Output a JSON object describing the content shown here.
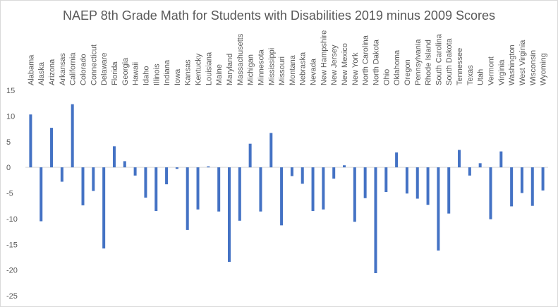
{
  "chart_data": {
    "type": "bar",
    "title": "NAEP 8th Grade Math for Students with Disabilities 2019 minus 2009 Scores",
    "xlabel": "",
    "ylabel": "",
    "ylim": [
      -25,
      15
    ],
    "yticks": [
      15,
      10,
      5,
      0,
      -5,
      -10,
      -15,
      -20,
      -25
    ],
    "grid": false,
    "legend": "none",
    "bar_color": "#4472c4",
    "categories": [
      "Alabama",
      "Alaska",
      "Arizona",
      "Arkansas",
      "California",
      "Colorado",
      "Connecticut",
      "Delaware",
      "Florida",
      "Georgia",
      "Hawaii",
      "Idaho",
      "Illinois",
      "Indiana",
      "Iowa",
      "Kansas",
      "Kentucky",
      "Louisiana",
      "Maine",
      "Maryland",
      "Massachusetts",
      "Michigan",
      "Minnesota",
      "Mississippi",
      "Missouri",
      "Montana",
      "Nebraska",
      "Nevada",
      "New Hampshire",
      "New Jersey",
      "New Mexico",
      "New York",
      "North Carolina",
      "North Dakota",
      "Ohio",
      "Oklahoma",
      "Oregon",
      "Pennsylvania",
      "Rhode Island",
      "South Carolina",
      "South Dakota",
      "Tennessee",
      "Texas",
      "Utah",
      "Vermont",
      "Virginia",
      "Washington",
      "West Virginia",
      "Wisconsin",
      "Wyoming"
    ],
    "values": [
      10.3,
      -10.5,
      7.7,
      -2.8,
      12.3,
      -7.4,
      -4.6,
      -15.8,
      4.1,
      1.2,
      -1.6,
      -5.9,
      -8.5,
      -3.3,
      -0.3,
      -12.2,
      -8.2,
      0.2,
      -8.6,
      -18.4,
      -10.4,
      4.6,
      -8.6,
      6.7,
      -11.3,
      -1.7,
      -3.2,
      -8.5,
      -8.2,
      -2.2,
      0.4,
      -10.6,
      -6.0,
      -20.6,
      -4.8,
      2.9,
      -5.1,
      -6.1,
      -7.3,
      -16.2,
      -9.0,
      3.4,
      -1.6,
      0.8,
      -10.1,
      3.1,
      -7.6,
      -5.0,
      -7.5,
      -4.5
    ]
  }
}
